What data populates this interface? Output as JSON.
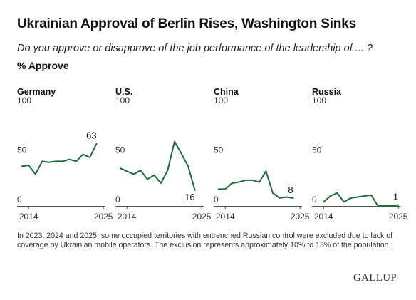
{
  "header": {
    "title": "Ukrainian Approval of Berlin Rises, Washington Sinks",
    "subtitle": "Do you approve or disapprove of the job performance of the leadership of ... ?",
    "metric": "% Approve"
  },
  "footnote": "In 2023, 2024 and 2025, some occupied territories with entrenched Russian control were excluded due to lack of coverage by Ukrainian mobile operators. The exclusion represents approximately 10% to 13% of the population.",
  "brand": "GALLUP",
  "colors": {
    "line": "#1e6b3a",
    "axis": "#555555",
    "text": "#111111"
  },
  "chart_data": [
    {
      "type": "line",
      "title": "Germany",
      "x": [
        2013,
        2014,
        2015,
        2016,
        2017,
        2018,
        2019,
        2020,
        2021,
        2022,
        2023,
        2024,
        2025
      ],
      "values": [
        40,
        41,
        32,
        45,
        44,
        45,
        45,
        47,
        45,
        52,
        49,
        63,
        null
      ],
      "ylim": [
        0,
        100
      ],
      "yticks": [
        0,
        50,
        100
      ],
      "xticks": [
        2014,
        2025
      ],
      "end_label": "63"
    },
    {
      "type": "line",
      "title": "U.S.",
      "x": [
        2013,
        2014,
        2015,
        2016,
        2017,
        2018,
        2019,
        2020,
        2021,
        2022,
        2023,
        2024,
        2025
      ],
      "values": [
        38,
        35,
        32,
        36,
        27,
        31,
        23,
        36,
        65,
        53,
        40,
        16,
        null
      ],
      "ylim": [
        0,
        100
      ],
      "yticks": [
        0,
        50,
        100
      ],
      "xticks": [
        2014,
        2025
      ],
      "end_label": "16"
    },
    {
      "type": "line",
      "title": "China",
      "x": [
        2013,
        2014,
        2015,
        2016,
        2017,
        2018,
        2019,
        2020,
        2021,
        2022,
        2023,
        2024,
        2025
      ],
      "values": [
        17,
        17,
        23,
        24,
        26,
        26,
        24,
        35,
        13,
        8,
        9,
        8,
        null
      ],
      "ylim": [
        0,
        100
      ],
      "yticks": [
        0,
        50,
        100
      ],
      "xticks": [
        2014,
        2025
      ],
      "end_label": "8"
    },
    {
      "type": "line",
      "title": "Russia",
      "x": [
        2013,
        2014,
        2015,
        2016,
        2017,
        2018,
        2019,
        2020,
        2021,
        2022,
        2023,
        2024,
        2025
      ],
      "values": [
        null,
        4,
        10,
        13,
        4,
        8,
        9,
        10,
        11,
        0,
        0,
        0,
        1
      ],
      "ylim": [
        0,
        100
      ],
      "yticks": [
        0,
        50,
        100
      ],
      "xticks": [
        2014,
        2025
      ],
      "end_label": "1"
    }
  ]
}
